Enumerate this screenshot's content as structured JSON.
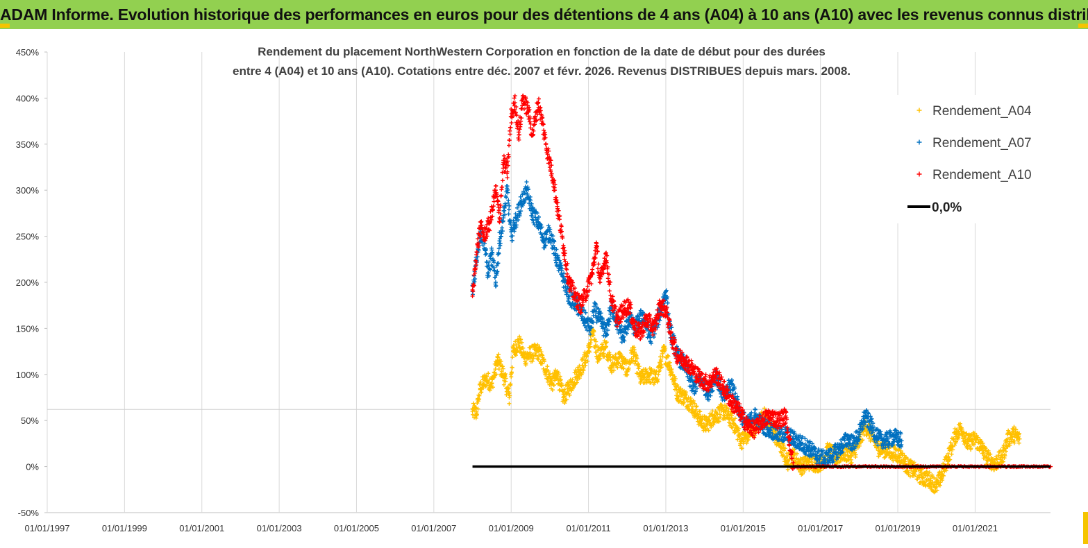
{
  "header": {
    "title": "ADAM Informe. Evolution historique des performances en euros pour des détentions de 4 ans (A04) à 10 ans (A10) avec les revenus connus distribués"
  },
  "colors": {
    "banner": "#92d050",
    "corner": "#f5c400",
    "A04": "#ffc000",
    "A07": "#0070c0",
    "A10": "#ff0000",
    "zero": "#000000",
    "grid": "#d9d9d9"
  },
  "chart_data": {
    "type": "scatter",
    "title_lines": [
      "Rendement du placement NorthWestern Corporation en fonction de la date de début pour des durées",
      "entre 4 (A04) et 10 ans (A10). Cotations entre déc. 2007 et févr. 2026. Revenus DISTRIBUES depuis mars. 2008."
    ],
    "x_tick_labels": [
      "01/01/1997",
      "01/01/1999",
      "01/01/2001",
      "01/01/2003",
      "01/01/2005",
      "01/01/2007",
      "01/01/2009",
      "01/01/2011",
      "01/01/2013",
      "01/01/2015",
      "01/01/2017",
      "01/01/2019",
      "01/01/2021"
    ],
    "xlim": [
      1997.0,
      2022.95
    ],
    "y_tick_labels": [
      "450%",
      "400%",
      "350%",
      "300%",
      "250%",
      "200%",
      "150%",
      "100%",
      "50%",
      "0%",
      "-50%"
    ],
    "ylim": [
      -50,
      450
    ],
    "grid": "vertical",
    "legend_position": "top-right",
    "legend": [
      {
        "label": "Rendement_A04",
        "marker": "plus",
        "color": "#ffc000"
      },
      {
        "label": "Rendement_A07",
        "marker": "plus",
        "color": "#0070c0"
      },
      {
        "label": "Rendement_A10",
        "marker": "plus",
        "color": "#ff0000"
      },
      {
        "label": "0,0%",
        "marker": "line",
        "color": "#000000"
      }
    ],
    "series": [
      {
        "name": "Rendement_A04",
        "color": "#ffc000",
        "points": [
          [
            2008.0,
            60
          ],
          [
            2008.1,
            58
          ],
          [
            2008.2,
            85
          ],
          [
            2008.35,
            95
          ],
          [
            2008.5,
            90
          ],
          [
            2008.65,
            115
          ],
          [
            2008.8,
            100
          ],
          [
            2008.95,
            75
          ],
          [
            2009.05,
            125
          ],
          [
            2009.2,
            135
          ],
          [
            2009.35,
            118
          ],
          [
            2009.5,
            122
          ],
          [
            2009.7,
            125
          ],
          [
            2009.9,
            105
          ],
          [
            2010.05,
            90
          ],
          [
            2010.2,
            100
          ],
          [
            2010.35,
            75
          ],
          [
            2010.5,
            85
          ],
          [
            2010.7,
            100
          ],
          [
            2010.85,
            110
          ],
          [
            2011.0,
            125
          ],
          [
            2011.1,
            145
          ],
          [
            2011.25,
            120
          ],
          [
            2011.45,
            130
          ],
          [
            2011.6,
            110
          ],
          [
            2011.8,
            118
          ],
          [
            2012.0,
            105
          ],
          [
            2012.15,
            125
          ],
          [
            2012.35,
            95
          ],
          [
            2012.55,
            100
          ],
          [
            2012.75,
            95
          ],
          [
            2012.95,
            125
          ],
          [
            2013.1,
            110
          ],
          [
            2013.3,
            80
          ],
          [
            2013.5,
            75
          ],
          [
            2013.7,
            65
          ],
          [
            2013.9,
            50
          ],
          [
            2014.05,
            45
          ],
          [
            2014.25,
            55
          ],
          [
            2014.5,
            60
          ],
          [
            2014.75,
            48
          ],
          [
            2014.95,
            28
          ],
          [
            2015.15,
            35
          ],
          [
            2015.35,
            45
          ],
          [
            2015.55,
            55
          ],
          [
            2015.75,
            40
          ],
          [
            2016.0,
            20
          ],
          [
            2016.15,
            5
          ],
          [
            2016.3,
            12
          ],
          [
            2016.5,
            0
          ],
          [
            2016.7,
            5
          ],
          [
            2016.9,
            3
          ],
          [
            2017.05,
            5
          ],
          [
            2017.2,
            18
          ],
          [
            2017.4,
            10
          ],
          [
            2017.6,
            15
          ],
          [
            2017.8,
            12
          ],
          [
            2018.0,
            25
          ],
          [
            2018.15,
            45
          ],
          [
            2018.3,
            35
          ],
          [
            2018.5,
            20
          ],
          [
            2018.7,
            18
          ],
          [
            2018.9,
            15
          ],
          [
            2019.05,
            12
          ],
          [
            2019.25,
            0
          ],
          [
            2019.45,
            -5
          ],
          [
            2019.65,
            -12
          ],
          [
            2019.85,
            -15
          ],
          [
            2020.0,
            -22
          ],
          [
            2020.15,
            -8
          ],
          [
            2020.3,
            10
          ],
          [
            2020.5,
            35
          ],
          [
            2020.65,
            42
          ],
          [
            2020.8,
            25
          ],
          [
            2021.0,
            30
          ],
          [
            2021.15,
            22
          ],
          [
            2021.3,
            10
          ],
          [
            2021.5,
            3
          ],
          [
            2021.7,
            10
          ],
          [
            2021.85,
            30
          ],
          [
            2022.0,
            35
          ],
          [
            2022.15,
            30
          ]
        ]
      },
      {
        "name": "Rendement_A07",
        "color": "#0070c0",
        "points": [
          [
            2008.0,
            190
          ],
          [
            2008.1,
            225
          ],
          [
            2008.2,
            255
          ],
          [
            2008.3,
            245
          ],
          [
            2008.4,
            210
          ],
          [
            2008.5,
            230
          ],
          [
            2008.6,
            200
          ],
          [
            2008.7,
            245
          ],
          [
            2008.8,
            270
          ],
          [
            2008.9,
            300
          ],
          [
            2009.0,
            250
          ],
          [
            2009.1,
            265
          ],
          [
            2009.25,
            285
          ],
          [
            2009.4,
            300
          ],
          [
            2009.55,
            275
          ],
          [
            2009.7,
            265
          ],
          [
            2009.85,
            245
          ],
          [
            2010.0,
            255
          ],
          [
            2010.15,
            230
          ],
          [
            2010.3,
            210
          ],
          [
            2010.5,
            185
          ],
          [
            2010.7,
            175
          ],
          [
            2010.9,
            160
          ],
          [
            2011.05,
            150
          ],
          [
            2011.15,
            170
          ],
          [
            2011.3,
            160
          ],
          [
            2011.45,
            145
          ],
          [
            2011.6,
            175
          ],
          [
            2011.75,
            155
          ],
          [
            2011.9,
            140
          ],
          [
            2012.05,
            160
          ],
          [
            2012.2,
            150
          ],
          [
            2012.4,
            165
          ],
          [
            2012.6,
            140
          ],
          [
            2012.8,
            160
          ],
          [
            2013.0,
            190
          ],
          [
            2013.1,
            150
          ],
          [
            2013.3,
            120
          ],
          [
            2013.5,
            110
          ],
          [
            2013.7,
            85
          ],
          [
            2013.9,
            95
          ],
          [
            2014.1,
            80
          ],
          [
            2014.3,
            100
          ],
          [
            2014.5,
            75
          ],
          [
            2014.7,
            90
          ],
          [
            2014.9,
            60
          ],
          [
            2015.1,
            45
          ],
          [
            2015.3,
            55
          ],
          [
            2015.5,
            45
          ],
          [
            2015.7,
            40
          ],
          [
            2015.9,
            35
          ],
          [
            2016.1,
            35
          ],
          [
            2016.3,
            30
          ],
          [
            2016.5,
            25
          ],
          [
            2016.7,
            20
          ],
          [
            2016.9,
            12
          ],
          [
            2017.1,
            8
          ],
          [
            2017.3,
            12
          ],
          [
            2017.5,
            20
          ],
          [
            2017.7,
            30
          ],
          [
            2017.85,
            25
          ],
          [
            2018.0,
            35
          ],
          [
            2018.15,
            55
          ],
          [
            2018.3,
            45
          ],
          [
            2018.5,
            30
          ],
          [
            2018.7,
            28
          ],
          [
            2018.9,
            32
          ],
          [
            2019.1,
            28
          ]
        ]
      },
      {
        "name": "Rendement_A10",
        "color": "#ff0000",
        "points": [
          [
            2008.0,
            185
          ],
          [
            2008.1,
            230
          ],
          [
            2008.2,
            260
          ],
          [
            2008.3,
            250
          ],
          [
            2008.45,
            265
          ],
          [
            2008.6,
            300
          ],
          [
            2008.7,
            270
          ],
          [
            2008.8,
            330
          ],
          [
            2008.9,
            320
          ],
          [
            2009.0,
            380
          ],
          [
            2009.1,
            395
          ],
          [
            2009.2,
            360
          ],
          [
            2009.3,
            400
          ],
          [
            2009.45,
            385
          ],
          [
            2009.55,
            360
          ],
          [
            2009.7,
            395
          ],
          [
            2009.8,
            375
          ],
          [
            2009.9,
            350
          ],
          [
            2010.0,
            330
          ],
          [
            2010.1,
            310
          ],
          [
            2010.2,
            280
          ],
          [
            2010.35,
            240
          ],
          [
            2010.5,
            200
          ],
          [
            2010.65,
            185
          ],
          [
            2010.8,
            175
          ],
          [
            2010.95,
            190
          ],
          [
            2011.1,
            210
          ],
          [
            2011.2,
            240
          ],
          [
            2011.3,
            200
          ],
          [
            2011.45,
            230
          ],
          [
            2011.6,
            180
          ],
          [
            2011.75,
            160
          ],
          [
            2011.9,
            170
          ],
          [
            2012.05,
            175
          ],
          [
            2012.2,
            150
          ],
          [
            2012.35,
            145
          ],
          [
            2012.5,
            160
          ],
          [
            2012.7,
            150
          ],
          [
            2012.85,
            175
          ],
          [
            2013.0,
            170
          ],
          [
            2013.15,
            140
          ],
          [
            2013.3,
            120
          ],
          [
            2013.5,
            115
          ],
          [
            2013.7,
            105
          ],
          [
            2013.9,
            95
          ],
          [
            2014.1,
            90
          ],
          [
            2014.3,
            100
          ],
          [
            2014.5,
            85
          ],
          [
            2014.7,
            70
          ],
          [
            2014.9,
            60
          ],
          [
            2015.1,
            45
          ],
          [
            2015.3,
            40
          ],
          [
            2015.5,
            50
          ],
          [
            2015.7,
            55
          ],
          [
            2015.9,
            50
          ],
          [
            2016.1,
            55
          ],
          [
            2016.3,
            0
          ],
          [
            2017.0,
            0
          ],
          [
            2018.0,
            0
          ],
          [
            2019.0,
            0
          ],
          [
            2020.0,
            0
          ],
          [
            2021.0,
            0
          ],
          [
            2022.0,
            0
          ],
          [
            2022.95,
            0
          ]
        ]
      }
    ],
    "zero_line": {
      "label": "0,0%",
      "x_start": 2008.0,
      "x_end": 2022.95,
      "value": 0
    }
  }
}
